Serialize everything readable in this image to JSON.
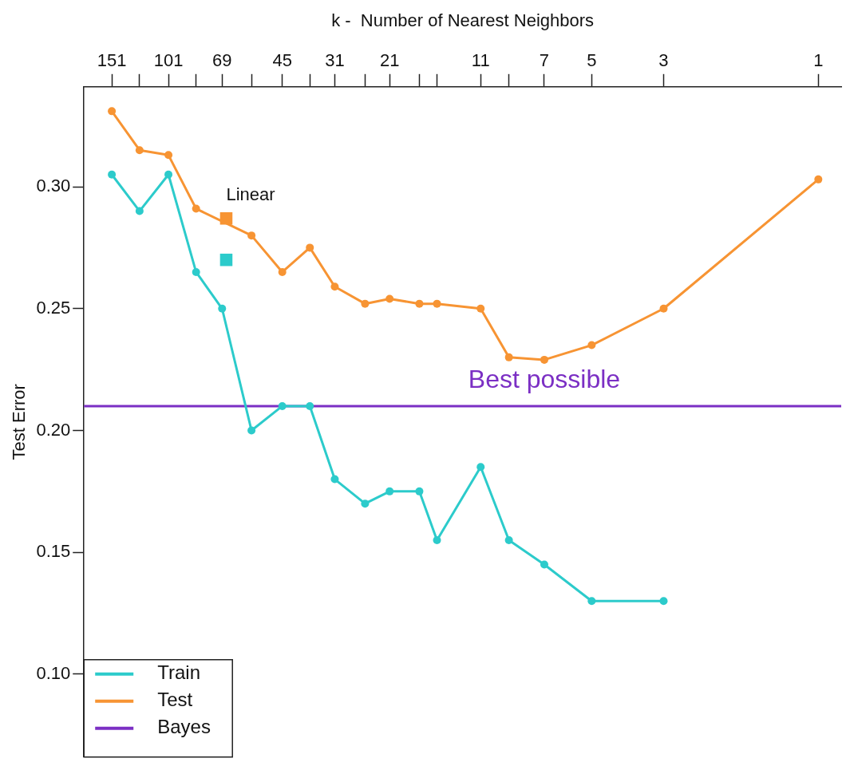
{
  "chart_data": {
    "type": "line",
    "xlabel": "k -  Number of Nearest Neighbors",
    "ylabel": "Test Error",
    "log": "x",
    "xlim": [
      184,
      0.85
    ],
    "ylim": [
      0.066,
      0.341
    ],
    "xticks": [
      151,
      {
        "value": 124,
        "label": null
      },
      101,
      {
        "value": 83,
        "label": null
      },
      69,
      {
        "value": 56,
        "label": null
      },
      45,
      {
        "value": 37,
        "label": null
      },
      31,
      {
        "value": 25,
        "label": null
      },
      21,
      {
        "value": 17,
        "label": null
      },
      {
        "value": 15,
        "label": null
      },
      11,
      {
        "value": 9,
        "label": null
      },
      7,
      5,
      3,
      1
    ],
    "yticks": [
      {
        "value": 0.1,
        "label": "0.10"
      },
      {
        "value": 0.15,
        "label": "0.15"
      },
      {
        "value": 0.2,
        "label": "0.20"
      },
      {
        "value": 0.25,
        "label": "0.25"
      },
      {
        "value": 0.3,
        "label": "0.30"
      }
    ],
    "grid": false,
    "legend": "bottom left",
    "marker": "circle",
    "series": [
      {
        "name": "Train",
        "color": "#2ccbcb",
        "x": [
          151,
          124,
          101,
          83,
          69,
          56,
          45,
          37,
          31,
          25,
          21,
          17,
          15,
          11,
          9,
          7,
          5,
          3
        ],
        "values": [
          0.305,
          0.29,
          0.305,
          0.265,
          0.25,
          0.2,
          0.21,
          0.21,
          0.18,
          0.17,
          0.175,
          0.175,
          0.155,
          0.185,
          0.155,
          0.145,
          0.13,
          0.13
        ]
      },
      {
        "name": "Test",
        "color": "#f79433",
        "x": [
          151,
          124,
          101,
          83,
          69,
          56,
          45,
          37,
          31,
          25,
          21,
          17,
          15,
          11,
          9,
          7,
          5,
          3,
          1
        ],
        "values": [
          0.331,
          0.315,
          0.313,
          0.291,
          null,
          0.28,
          0.265,
          0.275,
          0.259,
          0.252,
          0.254,
          0.252,
          0.252,
          0.25,
          0.23,
          0.229,
          0.235,
          0.25,
          0.303
        ]
      },
      {
        "name": "Bayes",
        "color": "#7b2fc4",
        "marker": "none",
        "x": [
          184,
          0.85
        ],
        "values": [
          0.21,
          0.21
        ]
      },
      {
        "type": "scatter",
        "color": "#f79433",
        "marker": "square",
        "x": [
          67
        ],
        "values": [
          0.287
        ]
      },
      {
        "type": "scatter",
        "color": "#2ccbcb",
        "marker": "square",
        "x": [
          67
        ],
        "values": [
          0.27
        ]
      }
    ],
    "annotations": [
      {
        "text": "Linear",
        "x": 67,
        "y": 0.287
      },
      {
        "text": "Best possible",
        "x": 7,
        "y": 0.21
      }
    ]
  }
}
